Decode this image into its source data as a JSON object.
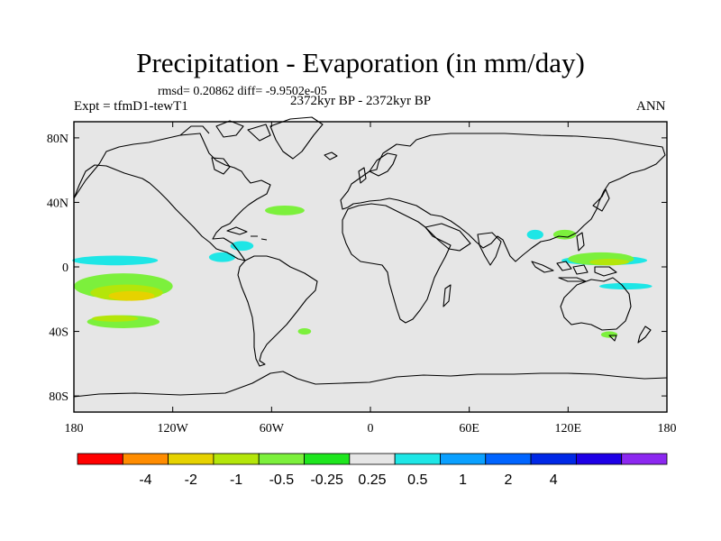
{
  "chart_data": {
    "type": "heatmap",
    "title": "Precipitation - Evaporation (in mm/day)",
    "stats": "rmsd= 0.20862 diff= -9.9502e-05",
    "experiment": "Expt = tfmD1-tewT1",
    "period": "2372kyr BP - 2372kyr BP",
    "season": "ANN",
    "x_ticks": [
      "180",
      "120W",
      "60W",
      "0",
      "60E",
      "120E",
      "180"
    ],
    "x_tick_values": [
      -180,
      -120,
      -60,
      0,
      60,
      120,
      180
    ],
    "y_ticks": [
      "80N",
      "40N",
      "0",
      "40S",
      "80S"
    ],
    "y_tick_values": [
      80,
      40,
      0,
      -40,
      -80
    ],
    "xlim": [
      -180,
      180
    ],
    "ylim": [
      -90,
      90
    ],
    "colorbar": {
      "colors": [
        "#ff0000",
        "#ff8c00",
        "#e6d200",
        "#b4e60a",
        "#7cf03c",
        "#1ee61e",
        "#e6e6e6",
        "#1ee6e6",
        "#0aa0ff",
        "#0064ff",
        "#0028e6",
        "#1e00e6",
        "#8c28f0"
      ],
      "labels": [
        "-4",
        "-2",
        "-1",
        "-0.5",
        "-0.25",
        "0.25",
        "0.5",
        "1",
        "2",
        "4"
      ]
    },
    "anomalies": [
      {
        "level": "0.5",
        "lon": -155,
        "lat": 4,
        "dlon": 26,
        "dlat": 3
      },
      {
        "level": "0.5",
        "lon": -90,
        "lat": 6,
        "dlon": 8,
        "dlat": 3
      },
      {
        "level": "0.5",
        "lon": -78,
        "lat": 13,
        "dlon": 7,
        "dlat": 3
      },
      {
        "level": "0.25",
        "lon": 68,
        "lat": 3,
        "dlon": 8,
        "dlat": 2
      },
      {
        "level": "0.5",
        "lon": 100,
        "lat": 20,
        "dlon": 5,
        "dlat": 3
      },
      {
        "level": "0.5",
        "lon": 142,
        "lat": 4,
        "dlon": 26,
        "dlat": 3
      },
      {
        "level": "0.5",
        "lon": 155,
        "lat": -12,
        "dlon": 16,
        "dlat": 2
      },
      {
        "level": "-0.25",
        "lon": -150,
        "lat": -12,
        "dlon": 30,
        "dlat": 8
      },
      {
        "level": "-0.5",
        "lon": -148,
        "lat": -16,
        "dlon": 22,
        "dlat": 5
      },
      {
        "level": "-1",
        "lon": -145,
        "lat": -18,
        "dlon": 14,
        "dlat": 3
      },
      {
        "level": "-0.25",
        "lon": -150,
        "lat": -34,
        "dlon": 22,
        "dlat": 4
      },
      {
        "level": "-0.5",
        "lon": -155,
        "lat": -32,
        "dlon": 14,
        "dlat": 2
      },
      {
        "level": "-0.25",
        "lon": -52,
        "lat": 35,
        "dlon": 12,
        "dlat": 3
      },
      {
        "level": "-0.25",
        "lon": 118,
        "lat": 20,
        "dlon": 7,
        "dlat": 3
      },
      {
        "level": "-0.25",
        "lon": 140,
        "lat": 5,
        "dlon": 20,
        "dlat": 4
      },
      {
        "level": "-0.5",
        "lon": 145,
        "lat": 3,
        "dlon": 12,
        "dlat": 2
      },
      {
        "level": "-0.25",
        "lon": 145,
        "lat": -42,
        "dlon": 5,
        "dlat": 2
      },
      {
        "level": "-0.25",
        "lon": -40,
        "lat": -40,
        "dlon": 4,
        "dlat": 2
      }
    ]
  }
}
